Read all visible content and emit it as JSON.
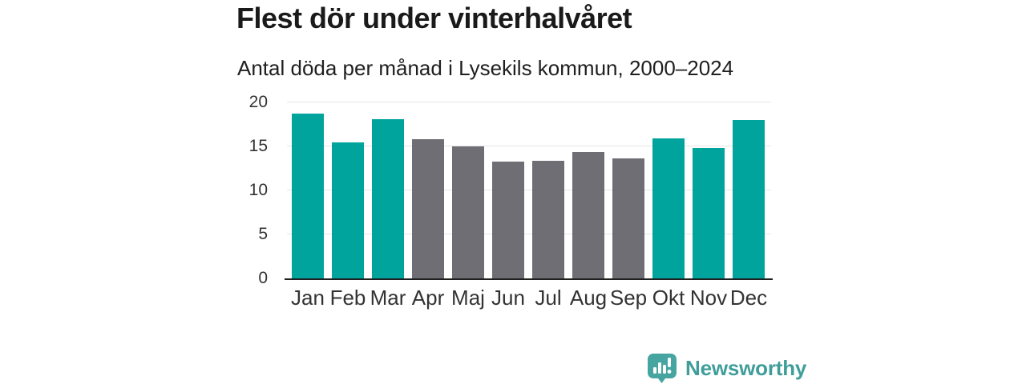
{
  "title": "Flest dör under vinterhalvåret",
  "subtitle": "Antal döda per månad i Lysekils kommun, 2000–2024",
  "footer": {
    "brand": "Newsworthy"
  },
  "colors": {
    "highlight": "#00a49c",
    "muted": "#6f6e74",
    "grid": "#e3e3e3",
    "axis_line": "#1f1f1f",
    "tick_label": "#333333",
    "brand": "#3f9e9a"
  },
  "chart_data": {
    "type": "bar",
    "title": "Flest dör under vinterhalvåret",
    "subtitle": "Antal döda per månad i Lysekils kommun, 2000–2024",
    "categories": [
      "Jan",
      "Feb",
      "Mar",
      "Apr",
      "Maj",
      "Jun",
      "Jul",
      "Aug",
      "Sep",
      "Okt",
      "Nov",
      "Dec"
    ],
    "values": [
      18.7,
      15.5,
      18.1,
      15.8,
      15.0,
      13.3,
      13.4,
      14.4,
      13.6,
      15.9,
      14.8,
      18.0
    ],
    "bar_colors": [
      "#00a49c",
      "#00a49c",
      "#00a49c",
      "#6f6e74",
      "#6f6e74",
      "#6f6e74",
      "#6f6e74",
      "#6f6e74",
      "#6f6e74",
      "#00a49c",
      "#00a49c",
      "#00a49c"
    ],
    "xlabel": "",
    "ylabel": "",
    "ylim": [
      0,
      20
    ],
    "yticks": [
      0,
      5,
      10,
      15,
      20
    ],
    "grid": true,
    "legend": false
  }
}
